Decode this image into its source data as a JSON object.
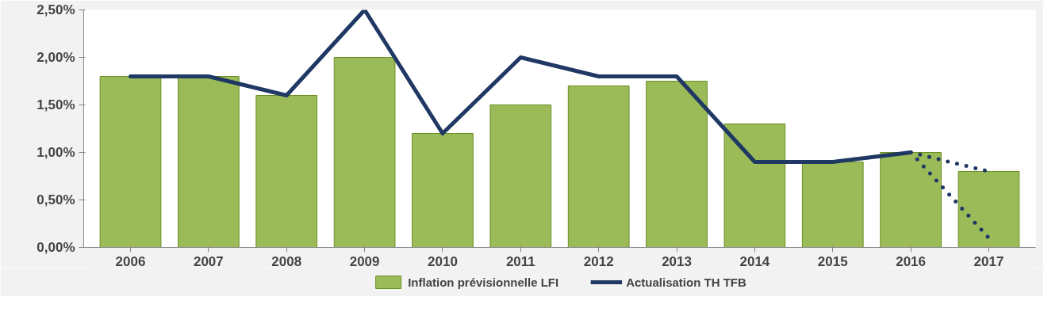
{
  "chart_data": {
    "type": "bar",
    "categories": [
      "2006",
      "2007",
      "2008",
      "2009",
      "2010",
      "2011",
      "2012",
      "2013",
      "2014",
      "2015",
      "2016",
      "2017"
    ],
    "series": [
      {
        "name": "Inflation prévisionnelle LFI",
        "color": "#9bbb59",
        "values": [
          1.8,
          1.8,
          1.6,
          2.0,
          1.2,
          1.5,
          1.7,
          1.75,
          1.3,
          0.9,
          1.0,
          0.8
        ]
      },
      {
        "name": "Actualisation TH TFB",
        "type": "line",
        "color": "#1f3864",
        "line_style": "solid",
        "values": [
          1.8,
          1.8,
          1.6,
          2.5,
          1.2,
          2.0,
          1.8,
          1.8,
          0.9,
          0.9,
          1.0,
          null
        ]
      },
      {
        "type": "line",
        "color": "#1f3864",
        "line_style": "dotted",
        "values": [
          null,
          null,
          null,
          null,
          null,
          null,
          null,
          null,
          null,
          null,
          1.0,
          0.8
        ]
      },
      {
        "type": "line",
        "color": "#1f3864",
        "line_style": "dotted",
        "values": [
          null,
          null,
          null,
          null,
          null,
          null,
          null,
          null,
          null,
          null,
          1.0,
          0.1
        ]
      }
    ],
    "ylim": [
      0,
      2.5
    ],
    "yticks": [
      {
        "value": 0,
        "label": "0,00%"
      },
      {
        "value": 0.5,
        "label": "0,50%"
      },
      {
        "value": 1.0,
        "label": "1,00%"
      },
      {
        "value": 1.5,
        "label": "1,50%"
      },
      {
        "value": 2.0,
        "label": "2,00%"
      },
      {
        "value": 2.5,
        "label": "2,50%"
      }
    ],
    "grid": false,
    "legend": "bottom",
    "marker": "none"
  }
}
